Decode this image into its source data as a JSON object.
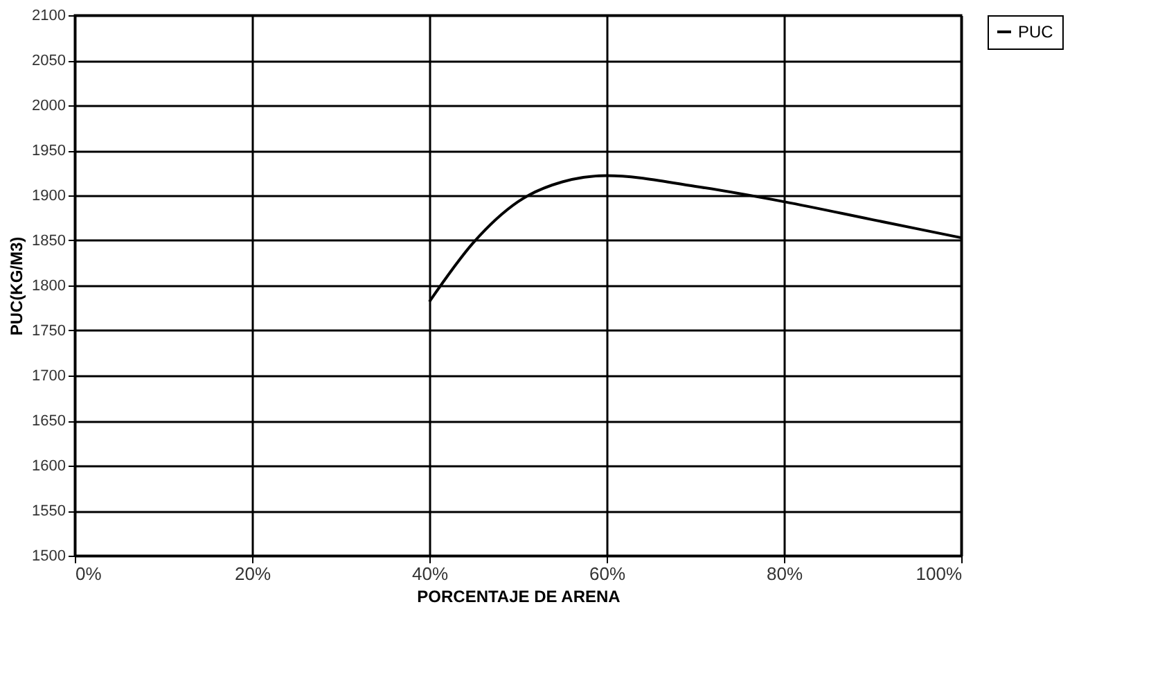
{
  "chart_data": {
    "type": "line",
    "xlabel": "PORCENTAJE DE ARENA",
    "ylabel": "PUC(KG/M3)",
    "x": [
      40,
      45,
      50,
      55,
      60,
      70,
      80,
      90,
      100
    ],
    "series": [
      {
        "name": "PUC",
        "color": "#000000",
        "values": [
          1782,
          1848,
          1893,
          1915,
          1922,
          1910,
          1893,
          1873,
          1853
        ]
      }
    ],
    "xlim": [
      0,
      100
    ],
    "xticks": [
      {
        "value": 0,
        "label": "0%"
      },
      {
        "value": 20,
        "label": "20%"
      },
      {
        "value": 40,
        "label": "40%"
      },
      {
        "value": 60,
        "label": "60%"
      },
      {
        "value": 80,
        "label": "80%"
      },
      {
        "value": 100,
        "label": "100%"
      }
    ],
    "ylim": [
      1500,
      2100
    ],
    "yticks": [
      1500,
      1550,
      1600,
      1650,
      1700,
      1750,
      1800,
      1850,
      1900,
      1950,
      2000,
      2050,
      2100
    ],
    "grid": true,
    "legend": "right",
    "marker": "none",
    "line_style": "solid"
  }
}
